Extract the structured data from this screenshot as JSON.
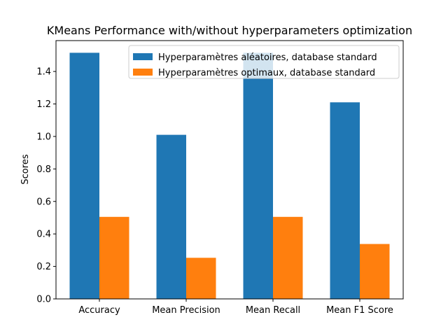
{
  "chart_data": {
    "type": "bar",
    "title": "KMeans Performance with/without hyperparameters optimization",
    "xlabel": "",
    "ylabel": "Scores",
    "categories": [
      "Accuracy",
      "Mean Precision",
      "Mean Recall",
      "Mean F1 Score"
    ],
    "series": [
      {
        "name": "Hyperparamètres aléatoires, database standard",
        "values": [
          1.515,
          1.01,
          1.515,
          1.21
        ],
        "color": "#1f77b4"
      },
      {
        "name": "Hyperparamètres optimaux, database standard",
        "values": [
          0.505,
          0.253,
          0.505,
          0.338
        ],
        "color": "#ff7f0e"
      }
    ],
    "ylim": [
      0,
      1.59
    ],
    "yticks": [
      0.0,
      0.2,
      0.4,
      0.6,
      0.8,
      1.0,
      1.2,
      1.4
    ],
    "ytick_labels": [
      "0.0",
      "0.2",
      "0.4",
      "0.6",
      "0.8",
      "1.0",
      "1.2",
      "1.4"
    ],
    "grid": false,
    "legend_position": "top-right"
  }
}
